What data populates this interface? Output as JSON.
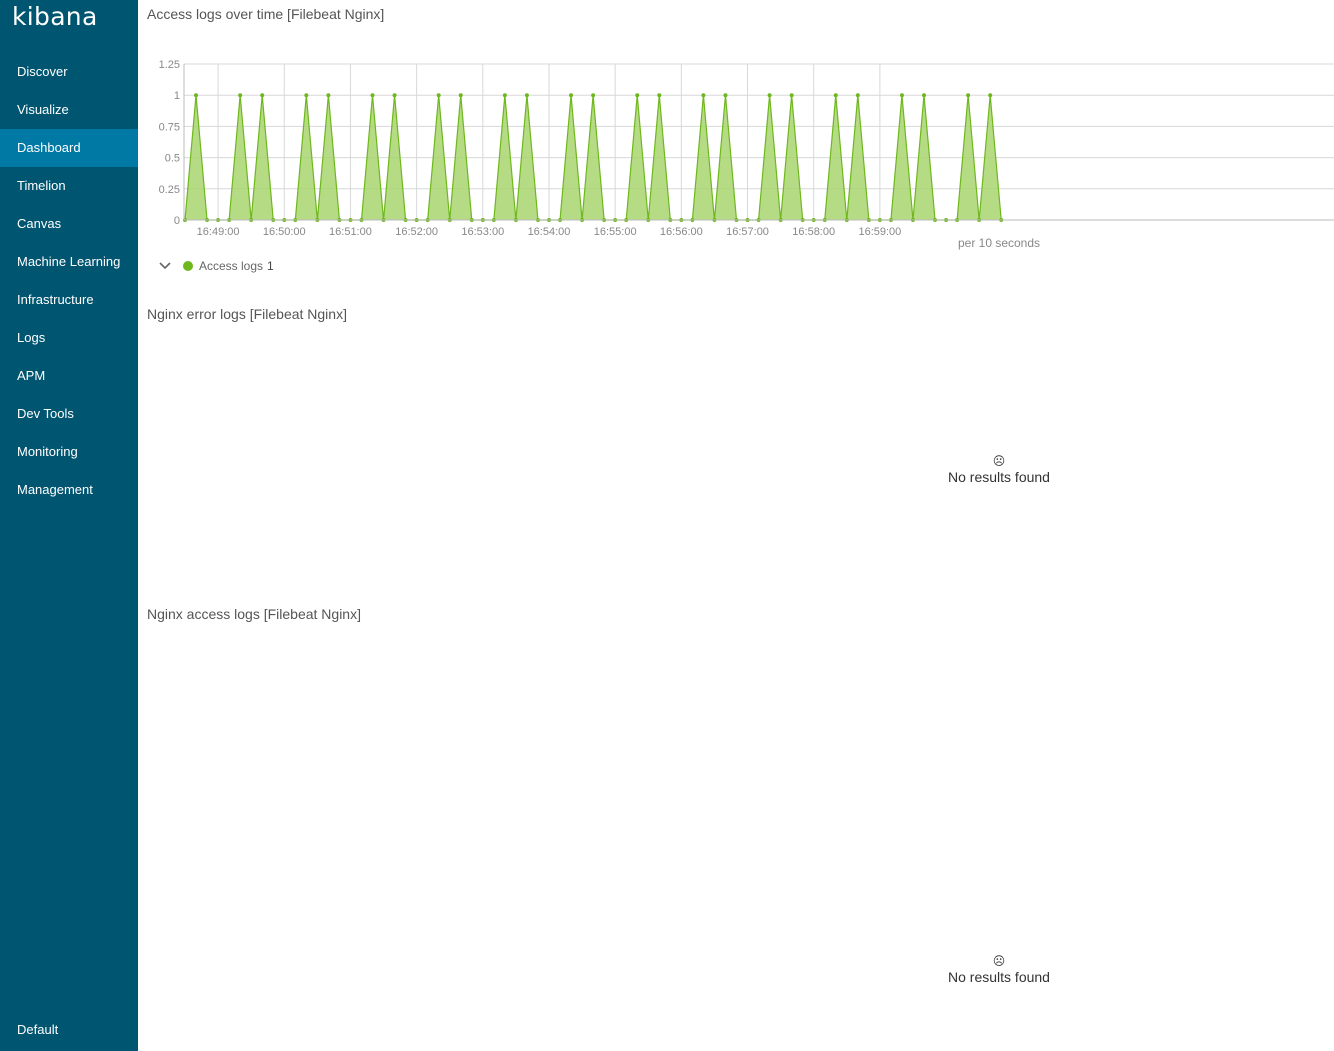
{
  "app": {
    "logo": "kibana"
  },
  "nav": {
    "items": [
      {
        "label": "Discover",
        "name": "nav-discover"
      },
      {
        "label": "Visualize",
        "name": "nav-visualize"
      },
      {
        "label": "Dashboard",
        "name": "nav-dashboard",
        "active": true
      },
      {
        "label": "Timelion",
        "name": "nav-timelion"
      },
      {
        "label": "Canvas",
        "name": "nav-canvas"
      },
      {
        "label": "Machine Learning",
        "name": "nav-machine-learning"
      },
      {
        "label": "Infrastructure",
        "name": "nav-infrastructure"
      },
      {
        "label": "Logs",
        "name": "nav-logs"
      },
      {
        "label": "APM",
        "name": "nav-apm"
      },
      {
        "label": "Dev Tools",
        "name": "nav-dev-tools"
      },
      {
        "label": "Monitoring",
        "name": "nav-monitoring"
      },
      {
        "label": "Management",
        "name": "nav-management"
      }
    ],
    "space": "Default"
  },
  "panels": {
    "access_over_time": {
      "title": "Access logs over time [Filebeat Nginx]"
    },
    "error_logs": {
      "title": "Nginx error logs [Filebeat Nginx]",
      "empty_icon": "☹",
      "empty_text": "No results found"
    },
    "access_logs": {
      "title": "Nginx access logs [Filebeat Nginx]",
      "empty_icon": "☹",
      "empty_text": "No results found"
    }
  },
  "legend": {
    "icon": "chevron-down-icon",
    "label": "Access logs",
    "count": "1"
  },
  "colors": {
    "sidebar": "#005571",
    "sidebar_active": "#0079a5",
    "series_line": "#6eb71d",
    "series_fill": "#a8d56e"
  },
  "chart_data": {
    "type": "area",
    "xlabel": "per 10 seconds",
    "ylim": [
      0,
      1.25
    ],
    "yticks": [
      0,
      0.25,
      0.5,
      0.75,
      1,
      1.25
    ],
    "x_start": "16:48:30",
    "x_step_seconds": 10,
    "xticks": [
      "16:49:00",
      "16:50:00",
      "16:51:00",
      "16:52:00",
      "16:53:00",
      "16:54:00",
      "16:55:00",
      "16:56:00",
      "16:57:00",
      "16:58:00",
      "16:59:00"
    ],
    "grid": true,
    "legend": "bottom-left",
    "series": [
      {
        "name": "Access logs",
        "values": [
          0,
          1,
          0,
          0,
          0,
          1,
          0,
          1,
          0,
          0,
          0,
          1,
          0,
          1,
          0,
          0,
          0,
          1,
          0,
          1,
          0,
          0,
          0,
          1,
          0,
          1,
          0,
          0,
          0,
          1,
          0,
          1,
          0,
          0,
          0,
          1,
          0,
          1,
          0,
          0,
          0,
          1,
          0,
          1,
          0,
          0,
          0,
          1,
          0,
          1,
          0,
          0,
          0,
          1,
          0,
          1,
          0,
          0,
          0,
          1,
          0,
          1,
          0,
          0,
          0,
          1,
          0,
          1,
          0,
          0,
          0,
          1,
          0,
          1,
          0
        ]
      }
    ]
  }
}
